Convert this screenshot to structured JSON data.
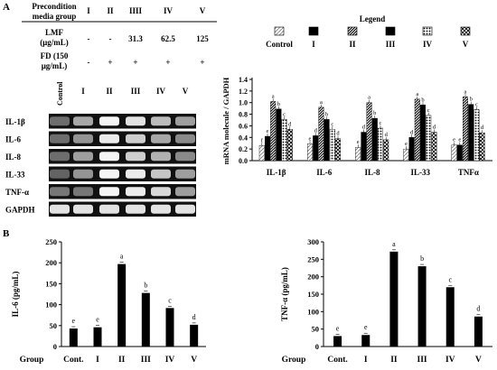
{
  "panels": {
    "a": "A",
    "b": "B"
  },
  "condition_table": {
    "columns": [
      "I",
      "II",
      "IIII",
      "IV",
      "V"
    ],
    "rows": [
      {
        "label": [
          "Precondition",
          "media group"
        ],
        "cells": [
          "I",
          "II",
          "IIII",
          "IV",
          "V"
        ]
      },
      {
        "label": [
          "LMF",
          "(μg/mL)"
        ],
        "cells": [
          "-",
          "-",
          "31.3",
          "62.5",
          "125"
        ]
      },
      {
        "label": [
          "FD (150",
          "μg/mL)"
        ],
        "cells": [
          "-",
          "+",
          "+",
          "+",
          "+"
        ]
      }
    ]
  },
  "gel": {
    "lane_labels": [
      "Control",
      "I",
      "II",
      "III",
      "IV",
      "V"
    ],
    "genes": [
      "IL-1β",
      "IL-6",
      "IL-8",
      "IL-33",
      "TNF-α",
      "GAPDH"
    ],
    "band_intensity": [
      [
        0.25,
        0.55,
        0.95,
        0.85,
        0.65,
        0.5
      ],
      [
        0.25,
        0.45,
        0.9,
        0.75,
        0.55,
        0.4
      ],
      [
        0.25,
        0.5,
        0.95,
        0.75,
        0.6,
        0.4
      ],
      [
        0.2,
        0.45,
        0.95,
        0.9,
        0.7,
        0.5
      ],
      [
        0.3,
        0.3,
        0.95,
        0.9,
        0.8,
        0.5
      ],
      [
        0.85,
        0.85,
        0.85,
        0.85,
        0.85,
        0.85
      ]
    ]
  },
  "chart_data": [
    {
      "type": "bar",
      "legend_title": "Legend",
      "series_labels": [
        "Control",
        "I",
        "II",
        "III",
        "IV",
        "V"
      ],
      "series_fills": [
        "hatch-light",
        "solid",
        "hatch-dense",
        "solid",
        "dots",
        "hatch-cross"
      ],
      "categories": [
        "IL-1β",
        "IL-6",
        "IL-8",
        "IL-33",
        "TNFα"
      ],
      "ylabel": "mRNA molecule / GAPDH",
      "ylim": [
        0,
        1.4
      ],
      "yticks": [
        "0.0",
        "0.2",
        "0.4",
        "0.6",
        "0.8",
        "1.0",
        "1.2",
        "1.4"
      ],
      "values": [
        [
          0.26,
          0.42,
          1.02,
          0.89,
          0.71,
          0.54
        ],
        [
          0.29,
          0.43,
          0.92,
          0.71,
          0.54,
          0.38
        ],
        [
          0.23,
          0.49,
          1.0,
          0.73,
          0.56,
          0.36
        ],
        [
          0.2,
          0.4,
          1.06,
          0.96,
          0.78,
          0.49
        ],
        [
          0.27,
          0.27,
          1.1,
          0.97,
          0.88,
          0.48
        ]
      ],
      "letters": [
        [
          "f",
          "e",
          "a",
          "b",
          "c",
          "d"
        ],
        [
          "e",
          "d",
          "a",
          "b",
          "c",
          "d"
        ],
        [
          "e",
          "d",
          "a",
          "b",
          "c",
          "d"
        ],
        [
          "e",
          "d",
          "a",
          "b",
          "c",
          "d"
        ],
        [
          "e",
          "e",
          "a",
          "b",
          "c",
          "d"
        ]
      ]
    },
    {
      "type": "bar",
      "categories": [
        "Cont.",
        "I",
        "II",
        "III",
        "IV",
        "V"
      ],
      "values": [
        43,
        46,
        197,
        128,
        92,
        52
      ],
      "letters": [
        "e",
        "e",
        "a",
        "b",
        "c",
        "d"
      ],
      "ylabel": "IL-6 (pg/mL)",
      "xlabel": "Group",
      "ylim": [
        0,
        250
      ],
      "yticks": [
        "0",
        "50",
        "100",
        "150",
        "200",
        "250"
      ]
    },
    {
      "type": "bar",
      "categories": [
        "Cont.",
        "I",
        "II",
        "III",
        "IV",
        "V"
      ],
      "values": [
        30,
        33,
        272,
        230,
        170,
        86
      ],
      "letters": [
        "e",
        "e",
        "a",
        "b",
        "c",
        "d"
      ],
      "ylabel": "TNF-α (pg/mL)",
      "xlabel": "Group",
      "ylim": [
        0,
        300
      ],
      "yticks": [
        "0",
        "50",
        "100",
        "150",
        "200",
        "250",
        "300"
      ]
    }
  ]
}
